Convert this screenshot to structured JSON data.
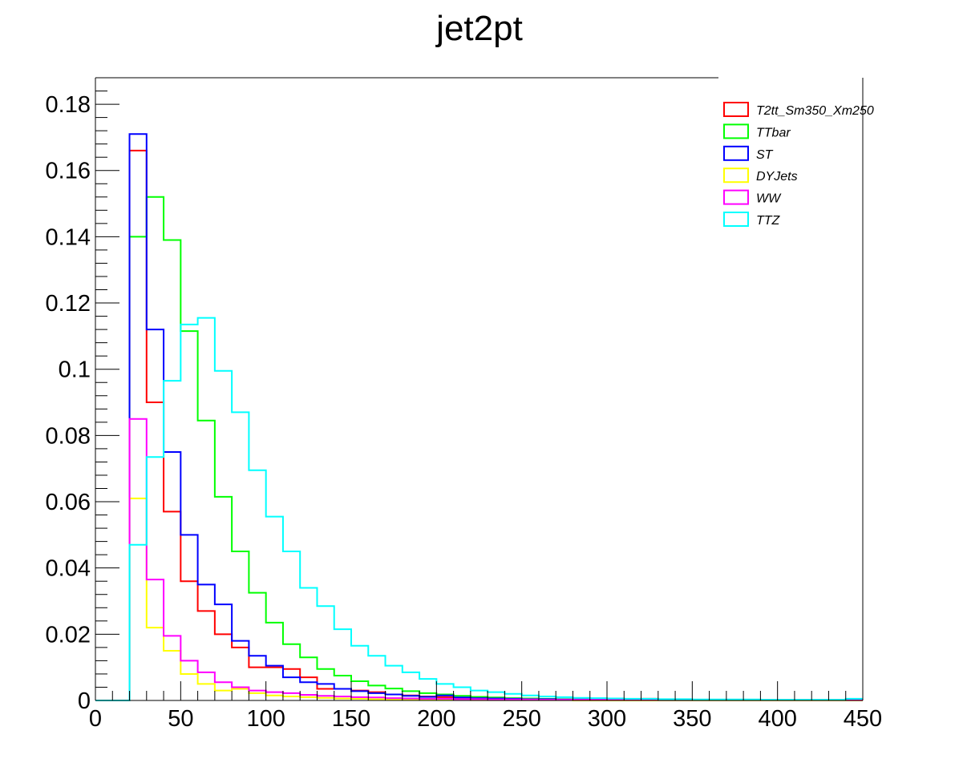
{
  "chart_data": {
    "type": "histogram",
    "title": "jet2pt",
    "xlabel": "",
    "ylabel": "",
    "xlim": [
      0,
      450
    ],
    "ylim": [
      0,
      0.188
    ],
    "grid": false,
    "legend_position": "top-right",
    "bin_width": 10,
    "bin_edges_start": 0,
    "x_ticks": [
      0,
      50,
      100,
      150,
      200,
      250,
      300,
      350,
      400,
      450
    ],
    "x_tick_labels": [
      "0",
      "50",
      "100",
      "150",
      "200",
      "250",
      "300",
      "350",
      "400",
      "450"
    ],
    "y_ticks": [
      0,
      0.02,
      0.04,
      0.06,
      0.08,
      0.1,
      0.12,
      0.14,
      0.16,
      0.18
    ],
    "y_tick_labels": [
      "0",
      "0.02",
      "0.04",
      "0.06",
      "0.08",
      "0.1",
      "0.12",
      "0.14",
      "0.16",
      "0.18"
    ],
    "series": [
      {
        "name": "T2tt_Sm350_Xm250",
        "color": "#ff0000",
        "values": [
          0,
          0,
          0.166,
          0.09,
          0.057,
          0.036,
          0.027,
          0.02,
          0.016,
          0.01,
          0.01,
          0.0095,
          0.007,
          0.0035,
          0.0035,
          0.003,
          0.0025,
          0.0018,
          0.0015,
          0.0012,
          0.001,
          0.0008,
          0.0006,
          0.0005,
          0.0004,
          0.0003,
          0.0003,
          0.0003,
          0.0003,
          0.0003,
          0.0002,
          0.0002,
          0.0005,
          0.0002,
          0.0002,
          0.0001,
          0.0001,
          0.0001,
          0.0001,
          0.0001,
          0.0001,
          0.0001,
          0.0001,
          0.0001,
          0.0001
        ]
      },
      {
        "name": "TTbar",
        "color": "#00ff00",
        "values": [
          0,
          0,
          0.14,
          0.152,
          0.139,
          0.1115,
          0.0845,
          0.0615,
          0.045,
          0.0325,
          0.0235,
          0.017,
          0.013,
          0.0095,
          0.0075,
          0.0058,
          0.0045,
          0.0036,
          0.0028,
          0.0022,
          0.0018,
          0.0014,
          0.0011,
          0.0009,
          0.0007,
          0.0006,
          0.0005,
          0.0004,
          0.0003,
          0.0003,
          0.0002,
          0.0002,
          0.0002,
          0.0001,
          0.0001,
          0.0001,
          0.0001,
          0.0001,
          0.0001,
          0.0001,
          0.0001,
          0.0001,
          0.0001,
          0.0001,
          0.0001
        ]
      },
      {
        "name": "ST",
        "color": "#0000ff",
        "values": [
          0,
          0,
          0.171,
          0.112,
          0.075,
          0.05,
          0.035,
          0.029,
          0.018,
          0.0135,
          0.0105,
          0.007,
          0.0055,
          0.005,
          0.0035,
          0.0028,
          0.0022,
          0.0018,
          0.0014,
          0.0011,
          0.0015,
          0.0009,
          0.0007,
          0.0006,
          0.0005,
          0.0004,
          0.0004,
          0.0003,
          0.0003,
          0.0002,
          0.0002,
          0.0002,
          0.0002,
          0.0001,
          0.0001,
          0.0001,
          0.0001,
          0.0001,
          0.0001,
          0.0001,
          0.0001,
          0.0001,
          0.0001,
          0.0001,
          0.0001
        ]
      },
      {
        "name": "DYJets",
        "color": "#ffff00",
        "values": [
          0,
          0,
          0.061,
          0.022,
          0.015,
          0.008,
          0.005,
          0.003,
          0.0035,
          0.0022,
          0.0015,
          0.0012,
          0.001,
          0.0008,
          0.0006,
          0.0005,
          0.0004,
          0.0003,
          0.0003,
          0.0002,
          0.0002,
          0.0002,
          0.0001,
          0.0001,
          0.0001,
          0.0001,
          0.0001,
          0.0001,
          0,
          0,
          0,
          0,
          0,
          0,
          0,
          0,
          0,
          0,
          0,
          0,
          0,
          0,
          0,
          0,
          0
        ]
      },
      {
        "name": "WW",
        "color": "#ff00ff",
        "values": [
          0,
          0,
          0.085,
          0.0365,
          0.0195,
          0.012,
          0.0085,
          0.0055,
          0.004,
          0.003,
          0.0025,
          0.0022,
          0.0017,
          0.0014,
          0.0012,
          0.001,
          0.0009,
          0.0007,
          0.0006,
          0.0005,
          0.0005,
          0.0004,
          0.0004,
          0.0003,
          0.0003,
          0.0003,
          0.0002,
          0.0002,
          0.0002,
          0.0002,
          0.0002,
          0.0002,
          0.0002,
          0.0001,
          0.0001,
          0.0001,
          0.0001,
          0.0001,
          0.0001,
          0.0001,
          0.0001,
          0.0001,
          0.0001,
          0.0001,
          0.0001
        ]
      },
      {
        "name": "TTZ",
        "color": "#00ffff",
        "values": [
          0,
          0,
          0.047,
          0.0735,
          0.0965,
          0.1135,
          0.1155,
          0.0995,
          0.087,
          0.0695,
          0.0555,
          0.045,
          0.034,
          0.0285,
          0.0215,
          0.0165,
          0.0135,
          0.0105,
          0.0085,
          0.0065,
          0.005,
          0.004,
          0.003,
          0.0025,
          0.002,
          0.0015,
          0.0012,
          0.001,
          0.0008,
          0.0007,
          0.0006,
          0.0005,
          0.0005,
          0.0004,
          0.0004,
          0.0003,
          0.0003,
          0.0003,
          0.0003,
          0.0002,
          0.0002,
          0.0002,
          0.0002,
          0.0002,
          0.0005
        ]
      }
    ]
  }
}
